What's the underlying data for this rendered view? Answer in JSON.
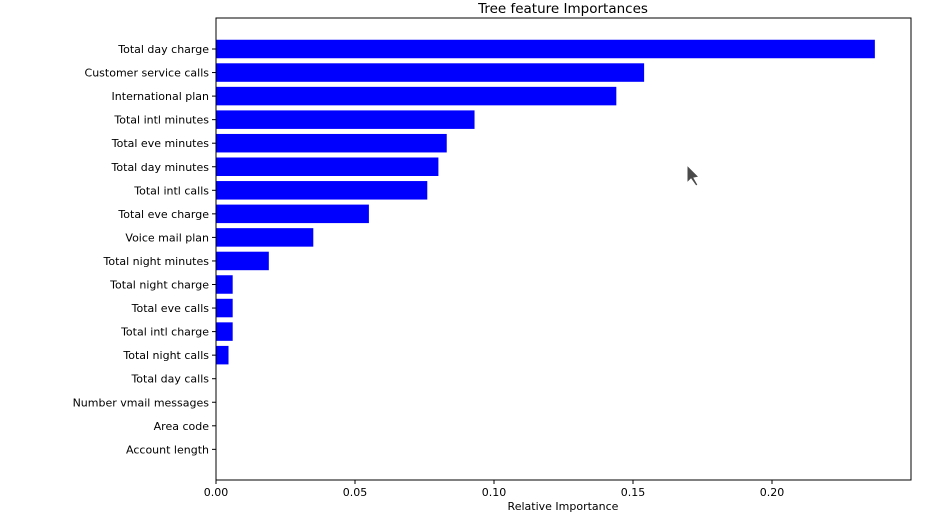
{
  "chart_data": {
    "type": "bar",
    "orientation": "horizontal",
    "title": "Tree feature Importances",
    "xlabel": "Relative Importance",
    "ylabel": "",
    "xlim": [
      0,
      0.25
    ],
    "xticks": [
      0.0,
      0.05,
      0.1,
      0.15,
      0.2
    ],
    "xtick_labels": [
      "0.00",
      "0.05",
      "0.10",
      "0.15",
      "0.20"
    ],
    "bar_color": "#0000ff",
    "grid": false,
    "categories": [
      "Total day charge",
      "Customer service calls",
      "International plan",
      "Total intl minutes",
      "Total eve minutes",
      "Total day minutes",
      "Total intl calls",
      "Total eve charge",
      "Voice mail plan",
      "Total night minutes",
      "Total night charge",
      "Total eve calls",
      "Total intl charge",
      "Total night calls",
      "Total day calls",
      "Number vmail messages",
      "Area code",
      "Account length"
    ],
    "values": [
      0.237,
      0.154,
      0.144,
      0.093,
      0.083,
      0.08,
      0.076,
      0.055,
      0.035,
      0.019,
      0.006,
      0.006,
      0.006,
      0.0045,
      0.0,
      0.0,
      0.0,
      0.0
    ]
  },
  "cursor": {
    "icon": "mouse-pointer-icon",
    "color": "#4a4a4a"
  }
}
